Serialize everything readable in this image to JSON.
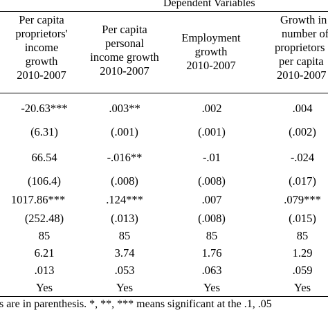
{
  "dependent_vars_title": "Dependent Variables",
  "headers": [
    [
      "Per capita",
      "proprietors'",
      "income",
      "growth",
      "2010-2007"
    ],
    [
      "Per capita",
      "personal",
      "income growth",
      "2010-2007"
    ],
    [
      "Employment",
      "growth",
      "2010-2007"
    ],
    [
      "Growth in",
      "number of",
      "proprietors",
      "per capita",
      "2010-2007"
    ]
  ],
  "rows": [
    [
      "-20.63***",
      ".003**",
      ".002",
      ".004"
    ],
    [
      "(6.31)",
      "(.001)",
      "(.001)",
      "(.002)"
    ],
    [
      "66.54",
      "-.016**",
      "-.01",
      "-.024"
    ],
    [
      "(106.4)",
      "(.008)",
      "(.008)",
      "(.017)"
    ],
    [
      "1017.86***",
      ".124***",
      ".007",
      ".079***"
    ],
    [
      "(252.48)",
      "(.013)",
      "(.008)",
      "(.015)"
    ],
    [
      "85",
      "85",
      "85",
      "85"
    ],
    [
      "6.21",
      "3.74",
      "1.76",
      "1.29"
    ],
    [
      ".013",
      ".053",
      ".063",
      ".059"
    ],
    [
      "Yes",
      "Yes",
      "Yes",
      "Yes"
    ]
  ],
  "note": "s are in parenthesis. *, **, *** means significant at the .1, .05"
}
